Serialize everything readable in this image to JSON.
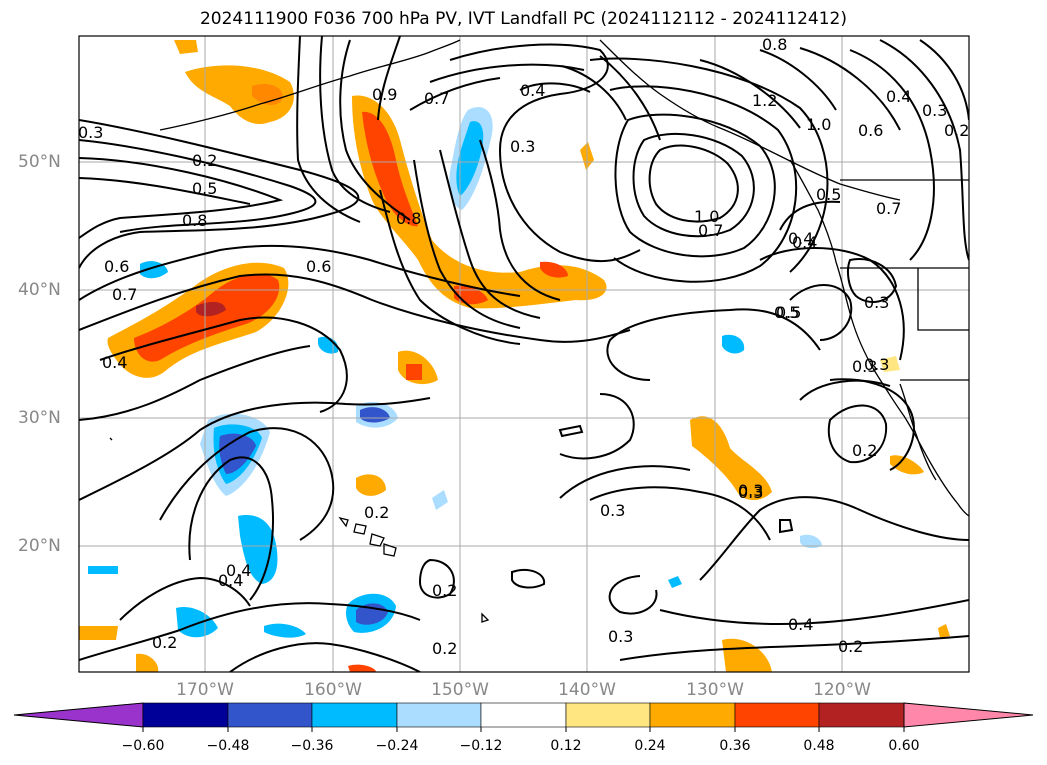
{
  "title": "2024111900 F036 700 hPa PV, IVT Landfall PC (2024112112 - 2024112412)",
  "axes": {
    "lat_labels": [
      "50°N",
      "40°N",
      "30°N",
      "20°N"
    ],
    "lon_labels": [
      "170°W",
      "160°W",
      "150°W",
      "140°W",
      "130°W",
      "120°W"
    ]
  },
  "colorbar": {
    "ticks": [
      "−0.60",
      "−0.48",
      "−0.36",
      "−0.24",
      "−0.12",
      "0.12",
      "0.24",
      "0.36",
      "0.48",
      "0.60"
    ],
    "colors": [
      "#9933cc",
      "#000099",
      "#3355cc",
      "#00bbff",
      "#aaddff",
      "#ffffff",
      "#ffe680",
      "#ffaa00",
      "#ff4400",
      "#b22222",
      "#ff88aa"
    ],
    "extend": "both"
  },
  "contour_labels": [
    "0.3",
    "0.2",
    "0.5",
    "0.8",
    "0.6",
    "0.7",
    "0.4",
    "0.9",
    "0.7",
    "0.8",
    "0.4",
    "0.3",
    "0.6",
    "0.4",
    "0.5",
    "0.4",
    "0.3",
    "0.2",
    "0.4",
    "0.2",
    "0.2",
    "0.3",
    "0.2",
    "0.3",
    "0.4",
    "0.2",
    "1.0",
    "0.7",
    "1.2",
    "1.0",
    "0.8",
    "0.4",
    "0.6",
    "0.3",
    "0.2",
    "0.5",
    "0.7",
    "0.4",
    "0.3",
    "0.5",
    "0.3",
    "0.2",
    "0.3",
    "0.3"
  ],
  "colors": {
    "contour": "#000000",
    "coast": "#000000",
    "grid": "#aaaaaa",
    "axis_text": "#888888"
  }
}
